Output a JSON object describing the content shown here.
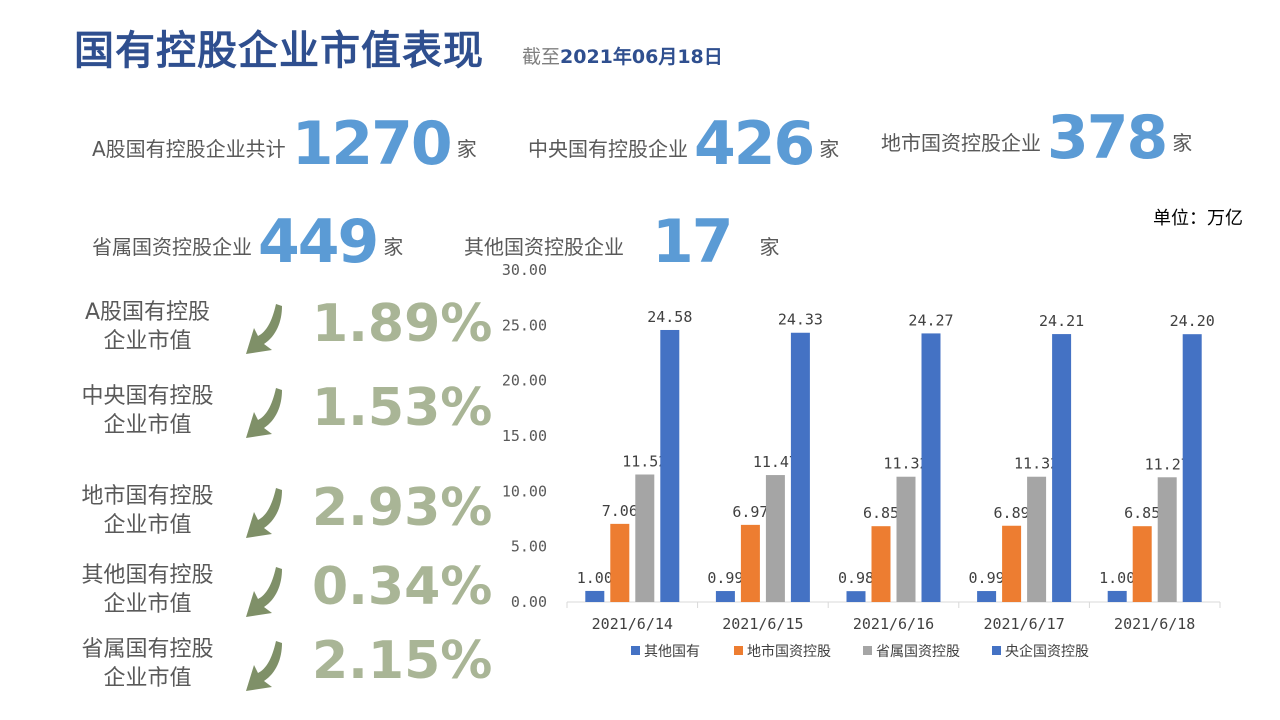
{
  "header": {
    "title": "国有控股企业市值表现",
    "date_prefix": "截至",
    "date_value": "2021年06月18日"
  },
  "stats": [
    {
      "label": "A股国有控股企业共计",
      "value": "1270",
      "unit": "家"
    },
    {
      "label": "中央国有控股企业",
      "value": "426",
      "unit": "家"
    },
    {
      "label": "地市国资控股企业",
      "value": "378",
      "unit": "家"
    },
    {
      "label": "省属国资控股企业",
      "value": "449",
      "unit": "家"
    },
    {
      "label": "其他国资控股企业",
      "value": "17",
      "unit": "家"
    }
  ],
  "unit_label": "单位：万亿",
  "market_value": [
    {
      "line1": "A股国有控股",
      "line2": "企业市值",
      "pct": "1.89%",
      "direction": "down"
    },
    {
      "line1": "中央国有控股",
      "line2": "企业市值",
      "pct": "1.53%",
      "direction": "down"
    },
    {
      "line1": "地市国有控股",
      "line2": "企业市值",
      "pct": "2.93%",
      "direction": "down"
    },
    {
      "line1": "其他国有控股",
      "line2": "企业市值",
      "pct": "0.34%",
      "direction": "down"
    },
    {
      "line1": "省属国有控股",
      "line2": "企业市值",
      "pct": "2.15%",
      "direction": "down"
    }
  ],
  "colors": {
    "title": "#2f4f8f",
    "stat_number": "#5b9bd5",
    "percent": "#a9b596",
    "arrow": "#7f9068"
  },
  "chart_data": {
    "type": "bar",
    "categories": [
      "2021/6/14",
      "2021/6/15",
      "2021/6/16",
      "2021/6/17",
      "2021/6/18"
    ],
    "series": [
      {
        "name": "其他国有",
        "color": "#4472c4",
        "values": [
          1.0,
          0.99,
          0.98,
          0.99,
          1.0
        ],
        "labels": [
          "1.00",
          "0.99",
          "0.98",
          "0.99",
          "1.00"
        ]
      },
      {
        "name": "地市国资控股",
        "color": "#ed7d31",
        "values": [
          7.06,
          6.97,
          6.85,
          6.89,
          6.85
        ],
        "labels": [
          "7.06",
          "6.97",
          "6.85",
          "6.89",
          "6.85"
        ]
      },
      {
        "name": "省属国资控股",
        "color": "#a5a5a5",
        "values": [
          11.52,
          11.47,
          11.32,
          11.32,
          11.27
        ],
        "labels": [
          "11.52",
          "11.47",
          "11.32",
          "11.32",
          "11.27"
        ]
      },
      {
        "name": "央企国资控股",
        "color": "#4472c4",
        "values": [
          24.58,
          24.33,
          24.27,
          24.21,
          24.2
        ],
        "labels": [
          "24.58",
          "24.33",
          "24.27",
          "24.21",
          "24.20"
        ]
      }
    ],
    "yticks": [
      "0.00",
      "5.00",
      "10.00",
      "15.00",
      "20.00",
      "25.00",
      "30.00"
    ],
    "ylim": [
      0,
      30
    ],
    "grid": false,
    "legend_position": "bottom"
  }
}
